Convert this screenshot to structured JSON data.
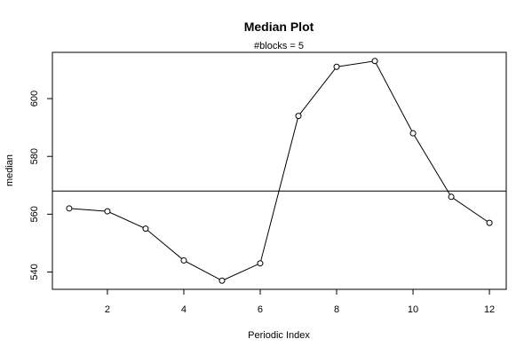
{
  "chart_data": {
    "type": "line",
    "title": "Median Plot",
    "subtitle": "#blocks =  5",
    "xlabel": "Periodic Index",
    "ylabel": "median",
    "x": [
      1,
      2,
      3,
      4,
      5,
      6,
      7,
      8,
      9,
      10,
      11,
      12
    ],
    "series": [
      {
        "values": [
          562,
          561,
          555,
          544,
          537,
          543,
          594,
          611,
          613,
          588,
          566,
          557
        ]
      }
    ],
    "reference_line": 568,
    "xlim": [
      0.56,
      12.44
    ],
    "ylim": [
      534,
      616
    ],
    "xticks": [
      2,
      4,
      6,
      8,
      10,
      12
    ],
    "xtick_labels": [
      "2",
      "4",
      "6",
      "8",
      "10",
      "12"
    ],
    "yticks": [
      540,
      560,
      580,
      600
    ],
    "ytick_labels": [
      "540",
      "560",
      "580",
      "600"
    ],
    "grid": false,
    "markers": "open-circle",
    "line_color": "#000000"
  }
}
